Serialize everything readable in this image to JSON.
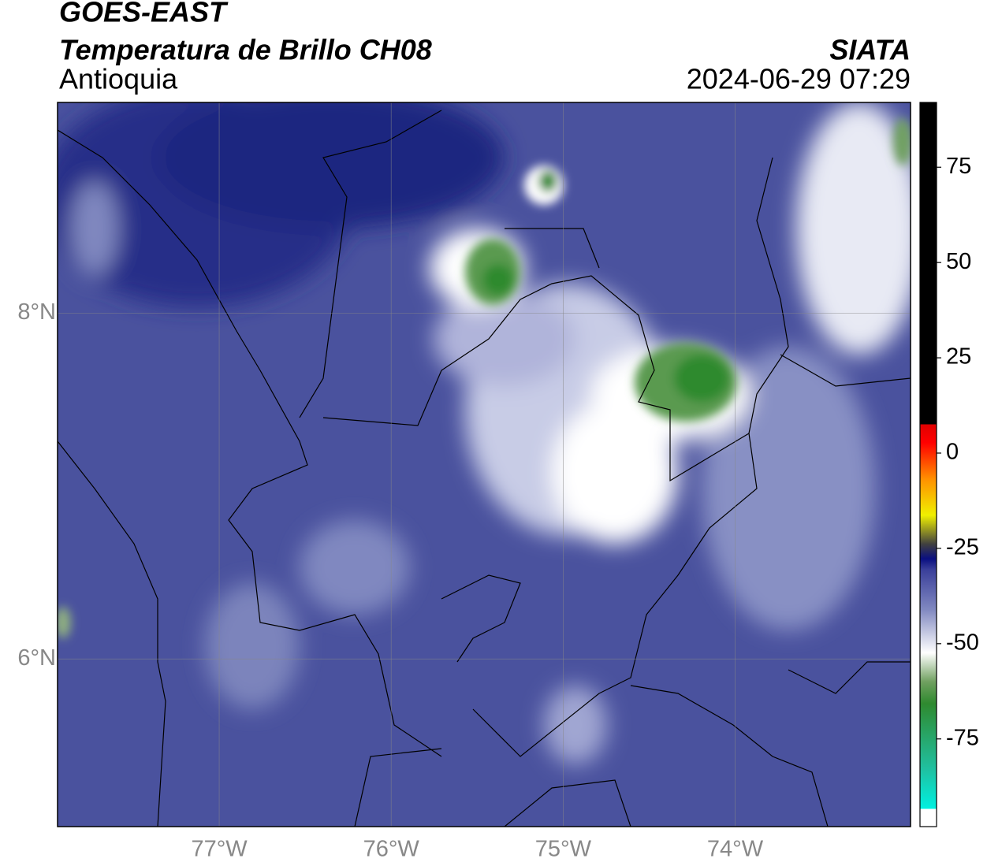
{
  "header": {
    "title": "GOES-EAST",
    "subtitle": "Temperatura de Brillo CH08",
    "region": "Antioquia",
    "source": "SIATA",
    "datetime": "2024-06-29 07:29"
  },
  "map": {
    "xlim": [
      -77.94,
      -72.98
    ],
    "ylim": [
      5.03,
      9.22
    ],
    "xticks": [
      {
        "value": -77,
        "label": "77°W"
      },
      {
        "value": -76,
        "label": "76°W"
      },
      {
        "value": -75,
        "label": "75°W"
      },
      {
        "value": -74,
        "label": "74°W"
      }
    ],
    "yticks": [
      {
        "value": 8,
        "label": "8°N"
      },
      {
        "value": 6,
        "label": "6°N"
      }
    ],
    "grid": true
  },
  "colorbar": {
    "lim": [
      -98,
      92
    ],
    "ticks": [
      75,
      50,
      25,
      0,
      -25,
      -50,
      -75
    ]
  }
}
